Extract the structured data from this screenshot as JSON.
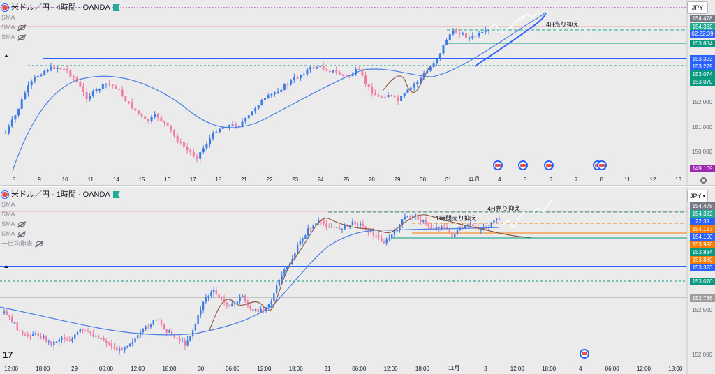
{
  "top": {
    "title": "米ドル／円 · 4時間 · OANDA",
    "indicators": [
      "SMA",
      "SMA",
      "SMA"
    ],
    "currency": "JPY",
    "annotation": "4H売り抑え",
    "time_ticks": [
      "8",
      "9",
      "10",
      "11",
      "14",
      "15",
      "16",
      "17",
      "18",
      "21",
      "22",
      "23",
      "24",
      "25",
      "28",
      "29",
      "30",
      "31",
      "11月",
      "4",
      "5",
      "6",
      "7",
      "8",
      "11",
      "12",
      "13"
    ],
    "price_labels": [
      {
        "text": "154.478",
        "color": "#787b86"
      },
      {
        "text": "154.382",
        "color": "#22ab94"
      },
      {
        "text": "02:22:39",
        "color": "#2962ff"
      },
      {
        "text": "153.884",
        "color": "#089981"
      },
      {
        "text": "153.323",
        "color": "#2962ff"
      },
      {
        "text": "153.279",
        "color": "#2962ff"
      },
      {
        "text": "153.074",
        "color": "#089981"
      },
      {
        "text": "153.070",
        "color": "#089981"
      },
      {
        "text": "149.109",
        "color": "#9c27b0"
      }
    ],
    "axis_prices": [
      "152.000",
      "151.000",
      "150.000"
    ]
  },
  "bottom": {
    "title": "米ドル／円 · 1時間 · OANDA",
    "indicators": [
      "SMA",
      "SMA",
      "SMA",
      "SMA",
      "一目均衡表"
    ],
    "currency": "JPY",
    "annotation_1": "1時間売り抑え",
    "annotation_2": "4H売り抑え",
    "time_ticks": [
      "12:00",
      "18:00",
      "29",
      "06:00",
      "12:00",
      "18:00",
      "30",
      "06:00",
      "12:00",
      "18:00",
      "31",
      "06:00",
      "12:00",
      "18:00",
      "11月",
      "3",
      "12:00",
      "18:00",
      "4",
      "06:00",
      "12:00",
      "18:00"
    ],
    "price_labels": [
      {
        "text": "154.478",
        "color": "#787b86"
      },
      {
        "text": "154.382",
        "color": "#22ab94"
      },
      {
        "text": "22:39",
        "color": "#2962ff"
      },
      {
        "text": "154.187",
        "color": "#f57c00"
      },
      {
        "text": "154.100",
        "color": "#2962ff"
      },
      {
        "text": "153.998",
        "color": "#f57c00"
      },
      {
        "text": "153.884",
        "color": "#089981"
      },
      {
        "text": "153.880",
        "color": "#f57c00"
      },
      {
        "text": "153.323",
        "color": "#2962ff"
      },
      {
        "text": "153.070",
        "color": "#089981"
      },
      {
        "text": "152.736",
        "color": "#9e9e9e"
      }
    ],
    "axis_prices": [
      "152.500",
      "152.000"
    ]
  },
  "colors": {
    "up": "#3d7ce6",
    "down": "#f27da0",
    "sma": "#4a7fe6",
    "kijun": "#8d5c4a"
  }
}
